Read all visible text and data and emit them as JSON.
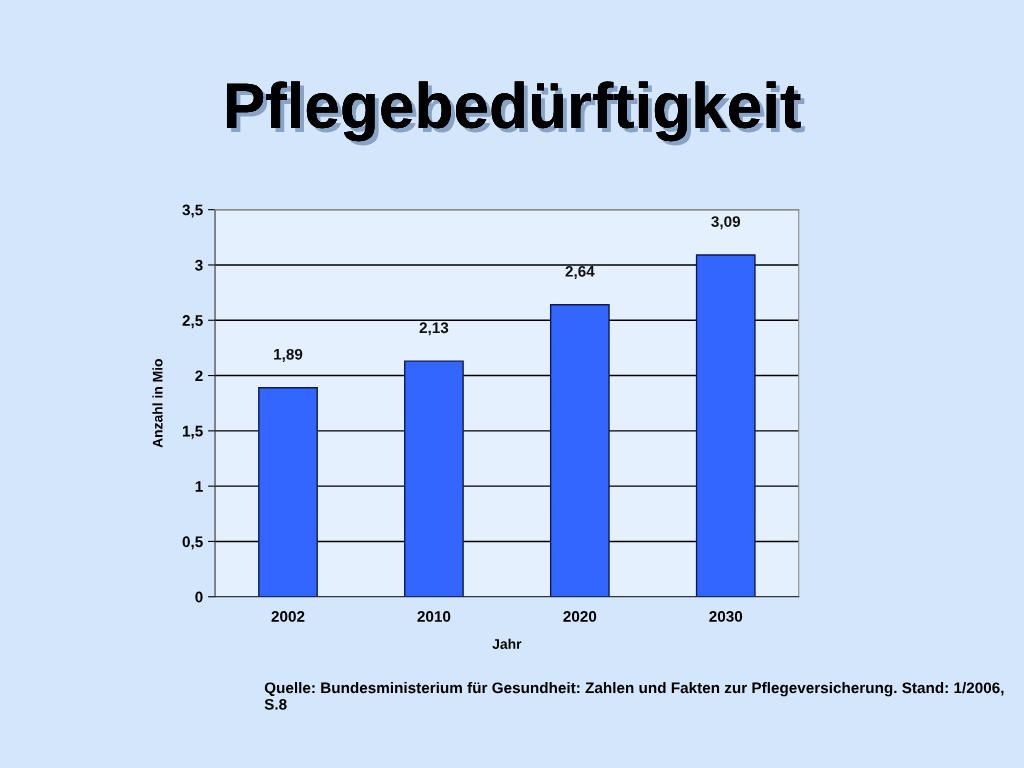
{
  "chart_data": {
    "type": "bar",
    "title": "Pflegebedürftigkeit",
    "xlabel": "Jahr",
    "ylabel": "Anzahl in Mio",
    "categories": [
      "2002",
      "2010",
      "2020",
      "2030"
    ],
    "values": [
      1.89,
      2.13,
      2.64,
      3.09
    ],
    "value_labels": [
      "1,89",
      "2,13",
      "2,64",
      "3,09"
    ],
    "color": "#3366ff",
    "ylim": [
      0,
      3.5
    ],
    "yticks": [
      0,
      {
        "value": 0.5,
        "label": "0,5"
      },
      1,
      {
        "value": 1.5,
        "label": "1,5"
      },
      2,
      {
        "value": 2.5,
        "label": "2,5"
      },
      3,
      {
        "value": 3.5,
        "label": "3,5"
      }
    ],
    "grid": "y",
    "annotations": [
      "Quelle: Bundesministerium für Gesundheit: Zahlen und Fakten zur Pflegeversicherung. Stand: 1/2006, S.8"
    ]
  }
}
